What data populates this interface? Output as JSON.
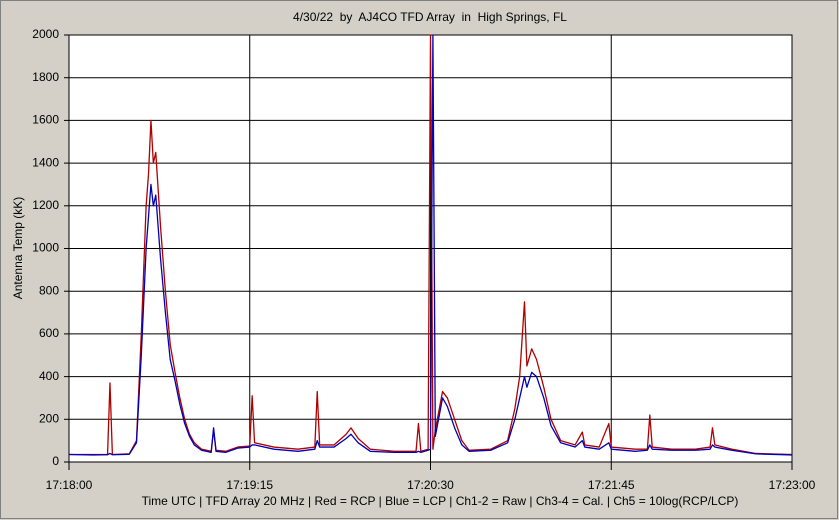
{
  "chart_data": {
    "type": "line",
    "title": "4/30/22  by  AJ4CO TFD Array  in  High Springs, FL",
    "ylabel": "Antenna Temp (kK)",
    "xlabel": "Time UTC | TFD Array 20 MHz | Red = RCP | Blue = LCP | Ch1-2 = Raw | Ch3-4 = Cal. | Ch5 = 10log(RCP/LCP)",
    "x": [
      "17:18:00",
      "17:18:10",
      "17:18:16",
      "17:18:17",
      "17:18:18",
      "17:18:25",
      "17:18:28",
      "17:18:30",
      "17:18:32",
      "17:18:33",
      "17:18:34",
      "17:18:35",
      "17:18:36",
      "17:18:38",
      "17:18:40",
      "17:18:42",
      "17:18:44",
      "17:18:46",
      "17:18:48",
      "17:18:50",
      "17:18:52",
      "17:18:55",
      "17:18:59",
      "17:19:00",
      "17:19:01",
      "17:19:05",
      "17:19:10",
      "17:19:15",
      "17:19:16",
      "17:19:17",
      "17:19:25",
      "17:19:35",
      "17:19:42",
      "17:19:43",
      "17:19:44",
      "17:19:50",
      "17:19:55",
      "17:19:57",
      "17:20:00",
      "17:20:05",
      "17:20:15",
      "17:20:24",
      "17:20:25",
      "17:20:26",
      "17:20:29",
      "17:20:30",
      "17:20:31",
      "17:20:32",
      "17:20:35",
      "17:20:37",
      "17:20:40",
      "17:20:43",
      "17:20:46",
      "17:20:55",
      "17:21:02",
      "17:21:05",
      "17:21:07",
      "17:21:09",
      "17:21:10",
      "17:21:12",
      "17:21:14",
      "17:21:17",
      "17:21:20",
      "17:21:24",
      "17:21:30",
      "17:21:33",
      "17:21:34",
      "17:21:40",
      "17:21:44",
      "17:21:45",
      "17:21:55",
      "17:22:00",
      "17:22:01",
      "17:22:02",
      "17:22:10",
      "17:22:20",
      "17:22:26",
      "17:22:27",
      "17:22:28",
      "17:22:35",
      "17:22:45",
      "17:23:00"
    ],
    "series": [
      {
        "color": "#b00000",
        "values": [
          35,
          35,
          35,
          370,
          35,
          38,
          100,
          600,
          1200,
          1350,
          1600,
          1400,
          1450,
          1100,
          800,
          550,
          420,
          300,
          200,
          130,
          90,
          60,
          50,
          150,
          55,
          50,
          70,
          75,
          310,
          90,
          70,
          60,
          70,
          330,
          80,
          80,
          130,
          160,
          110,
          60,
          50,
          50,
          180,
          50,
          60,
          2000,
          60,
          150,
          330,
          300,
          200,
          100,
          55,
          60,
          100,
          250,
          400,
          750,
          450,
          530,
          480,
          350,
          200,
          100,
          80,
          140,
          80,
          70,
          180,
          70,
          60,
          60,
          220,
          70,
          60,
          60,
          70,
          160,
          80,
          60,
          40,
          35
        ]
      },
      {
        "color": "#0000b8",
        "values": [
          35,
          33,
          34,
          40,
          34,
          36,
          90,
          500,
          1000,
          1150,
          1300,
          1200,
          1250,
          950,
          700,
          480,
          380,
          270,
          180,
          120,
          80,
          55,
          45,
          160,
          50,
          45,
          65,
          70,
          80,
          80,
          60,
          50,
          60,
          100,
          70,
          70,
          110,
          130,
          90,
          50,
          45,
          45,
          50,
          45,
          55,
          60,
          2000,
          120,
          300,
          260,
          160,
          80,
          50,
          55,
          90,
          200,
          300,
          400,
          350,
          420,
          400,
          300,
          170,
          90,
          70,
          100,
          70,
          60,
          90,
          60,
          50,
          55,
          80,
          60,
          55,
          55,
          60,
          80,
          70,
          55,
          38,
          33
        ]
      }
    ],
    "xlim": [
      "17:18:00",
      "17:23:00"
    ],
    "xticks": [
      "17:18:00",
      "17:19:15",
      "17:20:30",
      "17:21:45",
      "17:23:00"
    ],
    "ylim": [
      0,
      2000
    ],
    "yticks": [
      0,
      200,
      400,
      600,
      800,
      1000,
      1200,
      1400,
      1600,
      1800,
      2000
    ],
    "grid": true
  }
}
